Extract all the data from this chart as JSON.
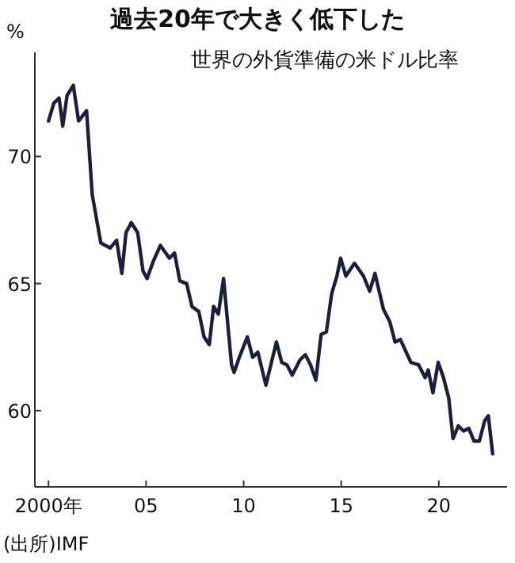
{
  "chart_data": {
    "type": "line",
    "title": "過去20年で大きく低下した",
    "subtitle": "世界の外貨準備の米ドル比率",
    "ylabel": "%",
    "annotations": [
      "(出所)IMF"
    ],
    "x": [
      2000.0,
      2000.27,
      2000.54,
      2000.73,
      2000.95,
      2001.27,
      2001.54,
      2001.95,
      2002.24,
      2002.68,
      2003.16,
      2003.49,
      2003.76,
      2003.97,
      2004.24,
      2004.57,
      2004.84,
      2005.05,
      2005.38,
      2005.73,
      2006.19,
      2006.46,
      2006.73,
      2007.08,
      2007.35,
      2007.7,
      2007.97,
      2008.24,
      2008.46,
      2008.7,
      2008.97,
      2009.38,
      2009.51,
      2009.78,
      2010.19,
      2010.46,
      2010.73,
      2011.14,
      2011.68,
      2011.95,
      2012.22,
      2012.49,
      2012.89,
      2013.16,
      2013.43,
      2013.7,
      2013.97,
      2014.24,
      2014.51,
      2014.78,
      2014.97,
      2015.24,
      2015.68,
      2016.14,
      2016.46,
      2016.73,
      2017.16,
      2017.49,
      2017.76,
      2018.03,
      2018.57,
      2018.97,
      2019.3,
      2019.46,
      2019.7,
      2019.97,
      2020.24,
      2020.51,
      2020.73,
      2021.0,
      2021.27,
      2021.54,
      2021.81,
      2022.08,
      2022.35,
      2022.54,
      2022.76
    ],
    "series": [
      {
        "color": "#1a1f3a",
        "values": [
          71.4,
          72.1,
          72.3,
          71.2,
          72.4,
          72.8,
          71.4,
          71.8,
          68.5,
          66.6,
          66.4,
          66.7,
          65.4,
          67.0,
          67.4,
          67.0,
          65.5,
          65.2,
          65.9,
          66.5,
          66.0,
          66.2,
          65.1,
          65.0,
          64.1,
          63.9,
          62.9,
          62.6,
          64.1,
          63.8,
          65.2,
          61.8,
          61.5,
          62.1,
          62.9,
          62.1,
          62.3,
          61.0,
          62.7,
          61.9,
          61.8,
          61.4,
          62.0,
          62.2,
          61.8,
          61.2,
          63.0,
          63.1,
          64.6,
          65.3,
          66.0,
          65.3,
          65.8,
          65.3,
          64.7,
          65.4,
          64.0,
          63.5,
          62.7,
          62.8,
          61.9,
          61.8,
          61.3,
          61.6,
          60.7,
          61.9,
          61.3,
          60.5,
          58.9,
          59.4,
          59.2,
          59.3,
          58.8,
          58.8,
          59.6,
          59.8,
          58.3
        ]
      }
    ],
    "xlim": [
      1999.3,
      2023.5
    ],
    "ylim": [
      57,
      74.1
    ],
    "xticks": [
      {
        "value": 2000,
        "label": "2000年"
      },
      {
        "value": 2005,
        "label": "05"
      },
      {
        "value": 2010,
        "label": "10"
      },
      {
        "value": 2015,
        "label": "15"
      },
      {
        "value": 2020,
        "label": "20"
      }
    ],
    "yticks": [
      60,
      65,
      70
    ]
  }
}
